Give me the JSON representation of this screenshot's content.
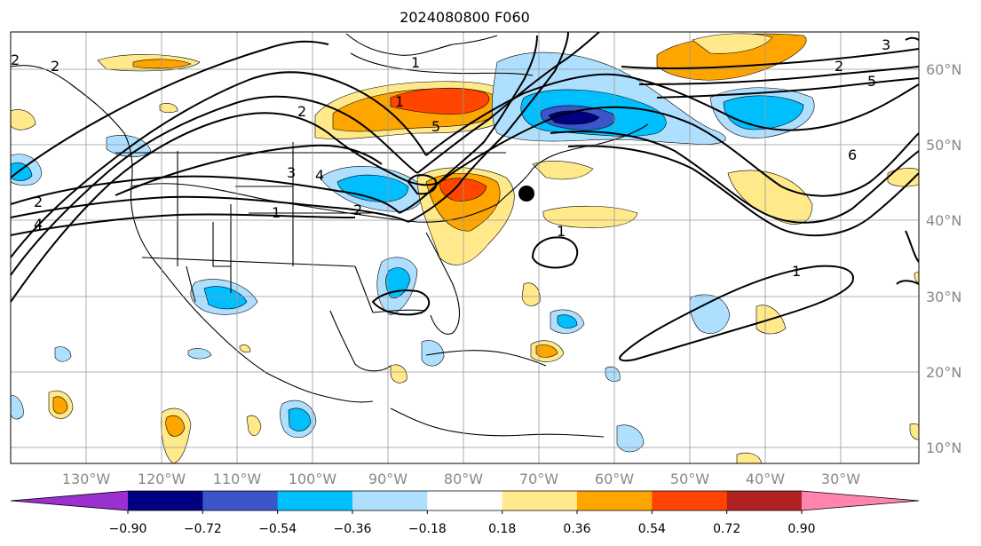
{
  "title": "2024080800 F060",
  "lon_labels": [
    "130°W",
    "120°W",
    "110°W",
    "100°W",
    "90°W",
    "80°W",
    "70°W",
    "60°W",
    "50°W",
    "40°W",
    "30°W"
  ],
  "lat_labels": [
    "60°N",
    "50°N",
    "40°N",
    "30°N",
    "20°N",
    "10°N"
  ],
  "colorbar": {
    "ticks": [
      "−0.90",
      "−0.72",
      "−0.54",
      "−0.36",
      "−0.18",
      "0.18",
      "0.36",
      "0.54",
      "0.72",
      "0.90"
    ],
    "colors": [
      "#9b30d0",
      "#000080",
      "#3c55c8",
      "#00bfff",
      "#afdfff",
      "#ffffff",
      "#ffe98a",
      "#ffa500",
      "#ff4500",
      "#b22222",
      "#ff85b0"
    ]
  },
  "contour_labels": [
    "1",
    "1",
    "1",
    "1",
    "1",
    "2",
    "2",
    "2",
    "2",
    "3",
    "3",
    "4",
    "4",
    "5",
    "5",
    "6",
    "2",
    "2"
  ],
  "marker": "storm-center-dot"
}
